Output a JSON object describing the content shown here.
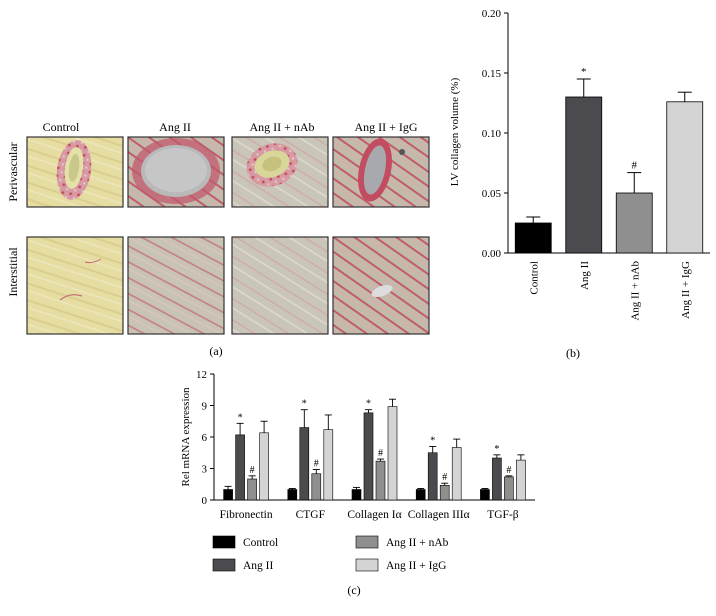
{
  "panel_a": {
    "columns": [
      "Control",
      "Ang II",
      "Ang II + nAb",
      "Ang II + IgG"
    ],
    "rows": [
      "Perivascular",
      "Interstitial"
    ],
    "label": "(a)"
  },
  "panel_b": {
    "label": "(b)"
  },
  "panel_c": {
    "label": "(c)"
  },
  "colors": {
    "Control": "#000000",
    "Ang II": "#4a4a4f",
    "Ang II + nAb": "#8f8f8f",
    "Ang II + IgG": "#d4d4d4"
  },
  "chart_data": [
    {
      "type": "bar",
      "ylabel": "LV collagen volume (%)",
      "categories": [
        "Control",
        "Ang II",
        "Ang II + nAb",
        "Ang II + IgG"
      ],
      "values": [
        0.025,
        0.13,
        0.05,
        0.126
      ],
      "errors": [
        0.005,
        0.015,
        0.017,
        0.008
      ],
      "annotations": [
        "",
        "*",
        "#",
        ""
      ],
      "ylim": [
        0,
        0.2
      ],
      "yticks": [
        "0.00",
        "0.05",
        "0.10",
        "0.15",
        "0.20"
      ]
    },
    {
      "type": "bar",
      "ylabel": "Rel mRNA expression",
      "categories": [
        "Fibronectin",
        "CTGF",
        "Collagen Iα",
        "Collagen IIIα",
        "TGF-β"
      ],
      "series": [
        {
          "name": "Control",
          "values": [
            1.0,
            1.0,
            1.0,
            1.0,
            1.0
          ],
          "errors": [
            0.3,
            0.1,
            0.2,
            0.1,
            0.1
          ],
          "annotations": [
            "",
            "",
            "",
            "",
            ""
          ]
        },
        {
          "name": "Ang II",
          "values": [
            6.2,
            6.9,
            8.3,
            4.5,
            4.0
          ],
          "errors": [
            1.1,
            1.7,
            0.3,
            0.6,
            0.3
          ],
          "annotations": [
            "*",
            "*",
            "*",
            "*",
            "*"
          ]
        },
        {
          "name": "Ang II + nAb",
          "values": [
            2.0,
            2.5,
            3.7,
            1.4,
            2.2
          ],
          "errors": [
            0.3,
            0.4,
            0.2,
            0.2,
            0.1
          ],
          "annotations": [
            "#",
            "#",
            "#",
            "#",
            "#"
          ]
        },
        {
          "name": "Ang II + IgG",
          "values": [
            6.4,
            6.7,
            8.9,
            5.0,
            3.8
          ],
          "errors": [
            1.1,
            1.4,
            0.7,
            0.8,
            0.5
          ],
          "annotations": [
            "",
            "",
            "",
            "",
            ""
          ]
        }
      ],
      "ylim": [
        0,
        12
      ],
      "yticks": [
        "0",
        "3",
        "6",
        "9",
        "12"
      ],
      "legend": "bottom"
    }
  ]
}
